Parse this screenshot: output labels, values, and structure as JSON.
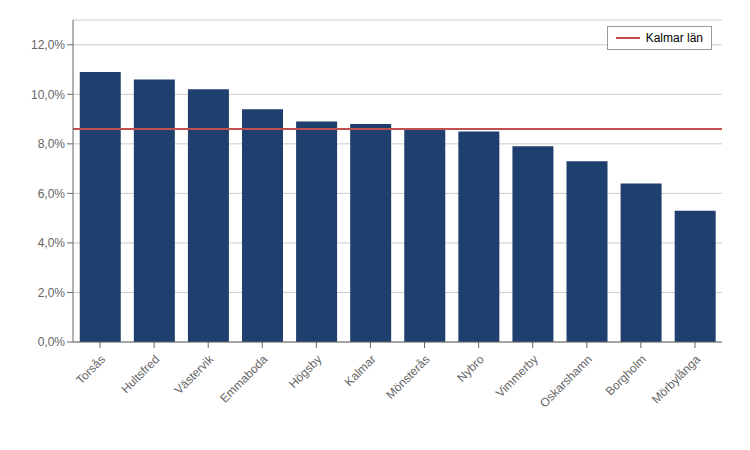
{
  "chart_data": {
    "type": "bar",
    "categories": [
      "Torsås",
      "Hultsfred",
      "Västervik",
      "Emmaboda",
      "Högsby",
      "Kalmar",
      "Mönsterås",
      "Nybro",
      "Vimmerby",
      "Oskarshamn",
      "Borgholm",
      "Mörbylånga"
    ],
    "values": [
      0.109,
      0.106,
      0.102,
      0.094,
      0.089,
      0.088,
      0.086,
      0.085,
      0.079,
      0.073,
      0.064,
      0.053
    ],
    "color": "#1F3F6E",
    "reference_lines": [
      {
        "value": 0.086,
        "label": "Kalmar län",
        "color": "#C0504D"
      }
    ],
    "ylim": [
      0.0,
      0.13
    ],
    "yticks": [
      {
        "value": 0.0,
        "label": "0,0%"
      },
      {
        "value": 0.02,
        "label": "2,0%"
      },
      {
        "value": 0.04,
        "label": "4,0%"
      },
      {
        "value": 0.06,
        "label": "6,0%"
      },
      {
        "value": 0.08,
        "label": "8,0%"
      },
      {
        "value": 0.1,
        "label": "10,0%"
      },
      {
        "value": 0.12,
        "label": "12,0%"
      }
    ],
    "grid": true,
    "legend": "upper right"
  }
}
